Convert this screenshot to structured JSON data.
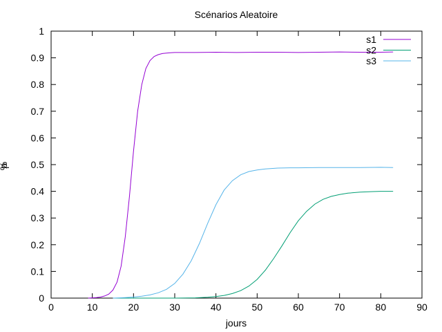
{
  "chart_data": {
    "type": "line",
    "title": "Scénarios Aleatoire",
    "xlabel": "jours",
    "ylabel": "%",
    "ylabel_overlap": "p",
    "xlim": [
      0,
      90
    ],
    "ylim": [
      0,
      1
    ],
    "x_ticks": [
      "0",
      "10",
      "20",
      "30",
      "40",
      "50",
      "60",
      "70",
      "80",
      "90"
    ],
    "y_ticks": [
      "0",
      "0.1",
      "0.2",
      "0.3",
      "0.4",
      "0.5",
      "0.6",
      "0.7",
      "0.8",
      "0.9",
      "1"
    ],
    "grid": false,
    "legend_position": "top-right",
    "series": [
      {
        "name": "s1",
        "color": "#9400d3",
        "x": [
          9,
          10,
          11,
          12,
          13,
          14,
          15,
          16,
          17,
          18,
          19,
          20,
          21,
          22,
          23,
          24,
          25,
          26,
          27,
          28,
          29,
          30,
          32,
          35,
          40,
          45,
          50,
          55,
          60,
          65,
          70,
          75,
          80,
          83
        ],
        "y": [
          0.0,
          0.001,
          0.002,
          0.004,
          0.008,
          0.015,
          0.03,
          0.06,
          0.12,
          0.23,
          0.38,
          0.55,
          0.7,
          0.8,
          0.86,
          0.89,
          0.905,
          0.912,
          0.916,
          0.918,
          0.919,
          0.92,
          0.92,
          0.92,
          0.921,
          0.92,
          0.921,
          0.921,
          0.92,
          0.921,
          0.922,
          0.921,
          0.921,
          0.922
        ]
      },
      {
        "name": "s2",
        "color": "#009e73",
        "x": [
          15,
          20,
          25,
          30,
          35,
          38,
          40,
          42,
          44,
          46,
          48,
          50,
          52,
          54,
          56,
          58,
          60,
          62,
          64,
          66,
          68,
          70,
          72,
          75,
          78,
          80,
          83
        ],
        "y": [
          0.0,
          0.0,
          0.0,
          0.0,
          0.001,
          0.003,
          0.006,
          0.01,
          0.017,
          0.028,
          0.045,
          0.07,
          0.105,
          0.148,
          0.195,
          0.245,
          0.29,
          0.325,
          0.352,
          0.37,
          0.381,
          0.388,
          0.393,
          0.397,
          0.399,
          0.4,
          0.4
        ]
      },
      {
        "name": "s3",
        "color": "#56b4e9",
        "x": [
          15,
          18,
          20,
          22,
          24,
          26,
          28,
          30,
          32,
          34,
          36,
          38,
          40,
          42,
          44,
          46,
          48,
          50,
          52,
          55,
          58,
          60,
          65,
          70,
          75,
          80,
          83
        ],
        "y": [
          0.0,
          0.002,
          0.004,
          0.007,
          0.012,
          0.02,
          0.033,
          0.055,
          0.09,
          0.14,
          0.205,
          0.28,
          0.35,
          0.405,
          0.44,
          0.462,
          0.474,
          0.48,
          0.484,
          0.487,
          0.488,
          0.488,
          0.489,
          0.489,
          0.489,
          0.49,
          0.489
        ]
      }
    ]
  }
}
